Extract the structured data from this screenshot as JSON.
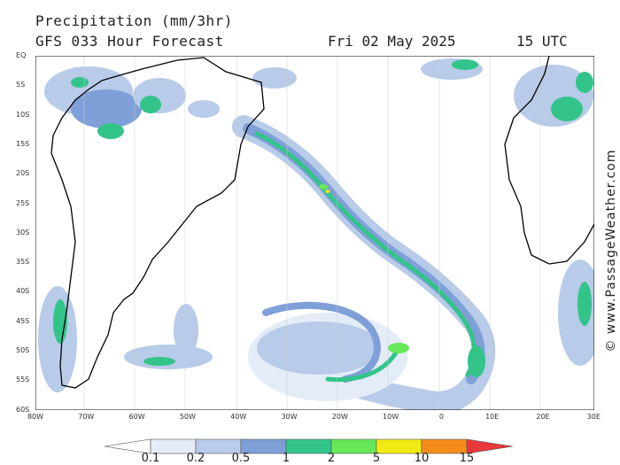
{
  "header": {
    "title": "Precipitation (mm/3hr)",
    "subtitle": "GFS 033 Hour Forecast",
    "date": "Fri 02 May 2025",
    "time": "15 UTC"
  },
  "credit": "© www.PassageWeather.com",
  "map": {
    "lat_labels": [
      "EQ",
      "5S",
      "10S",
      "15S",
      "20S",
      "25S",
      "30S",
      "35S",
      "40S",
      "45S",
      "50S",
      "55S",
      "60S"
    ],
    "lon_labels": [
      "80W",
      "70W",
      "60W",
      "50W",
      "40W",
      "30W",
      "20W",
      "10W",
      "0",
      "10E",
      "20E",
      "30E"
    ],
    "colors": {
      "land_border": "#000000",
      "ocean": "#ffffff",
      "graticule": "#bbbbbb"
    }
  },
  "legend": {
    "labels": [
      "0.1",
      "0.2",
      "0.5",
      "1",
      "2",
      "5",
      "10",
      "15"
    ],
    "colors": [
      "#ffffff",
      "#e4ecf7",
      "#b8cbe8",
      "#7f9fd8",
      "#33c48a",
      "#66e85a",
      "#f2ea14",
      "#f48c1c",
      "#e8383c"
    ]
  }
}
